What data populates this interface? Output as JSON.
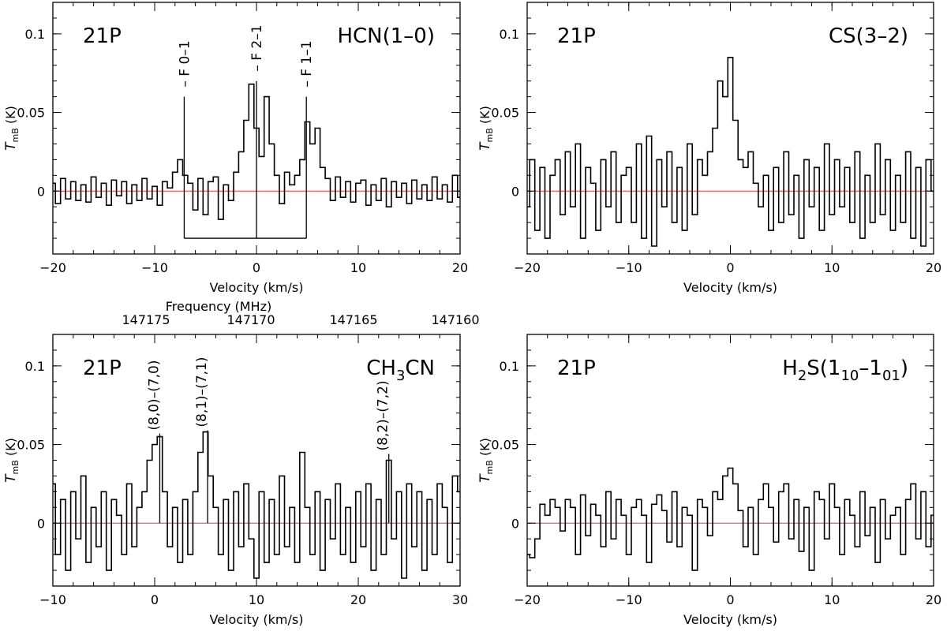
{
  "figure": {
    "colors": {
      "spectrum": "#000000",
      "baseline": "#e8382f"
    }
  },
  "chart_data": [
    {
      "id": "hcn",
      "type": "line",
      "step": true,
      "panel_label": "21P",
      "molecule": {
        "text": "HCN(1–0)"
      },
      "xlabel": "Velocity (km/s)",
      "ylabel": {
        "main": "T",
        "sub": "mB",
        "unit": " (K)"
      },
      "xlim": [
        -20,
        20
      ],
      "ylim": [
        -0.04,
        0.12
      ],
      "xticks": [
        -20,
        -10,
        0,
        10,
        20
      ],
      "xtick_labels": [
        "−20",
        "−10",
        "0",
        "10",
        "20"
      ],
      "yticks": [
        0,
        0.05,
        0.1
      ],
      "ytick_labels": [
        "0",
        "0.05",
        "0.1"
      ],
      "x_minor_step": 2,
      "y_minor_step": 0.01,
      "baseline": 0,
      "hyperfine": {
        "bar_y": -0.03,
        "components": [
          {
            "x": -7.1,
            "label": "F 0–1",
            "top": 0.06
          },
          {
            "x": 0.0,
            "label": "F 2–1",
            "top": 0.07
          },
          {
            "x": 4.9,
            "label": "F 1–1",
            "top": 0.06
          }
        ]
      },
      "x": [
        -20.0,
        -19.5,
        -19.0,
        -18.5,
        -18.0,
        -17.5,
        -17.0,
        -16.5,
        -16.0,
        -15.5,
        -15.0,
        -14.5,
        -14.0,
        -13.5,
        -13.0,
        -12.5,
        -12.0,
        -11.5,
        -11.0,
        -10.5,
        -10.0,
        -9.5,
        -9.0,
        -8.5,
        -8.0,
        -7.5,
        -7.0,
        -6.5,
        -6.0,
        -5.5,
        -5.0,
        -4.5,
        -4.0,
        -3.5,
        -3.0,
        -2.5,
        -2.0,
        -1.5,
        -1.0,
        -0.5,
        0.0,
        0.5,
        1.0,
        1.5,
        2.0,
        2.5,
        3.0,
        3.5,
        4.0,
        4.5,
        5.0,
        5.5,
        6.0,
        6.5,
        7.0,
        7.5,
        8.0,
        8.5,
        9.0,
        9.5,
        10.0,
        10.5,
        11.0,
        11.5,
        12.0,
        12.5,
        13.0,
        13.5,
        14.0,
        14.5,
        15.0,
        15.5,
        16.0,
        16.5,
        17.0,
        17.5,
        18.0,
        18.5,
        19.0,
        19.5,
        20.0
      ],
      "y": [
        0.005,
        -0.008,
        0.008,
        -0.005,
        0.006,
        -0.006,
        0.004,
        -0.007,
        0.009,
        -0.004,
        0.005,
        -0.009,
        0.007,
        -0.003,
        0.006,
        -0.008,
        0.004,
        -0.006,
        0.008,
        -0.005,
        0.003,
        -0.009,
        0.006,
        0.002,
        0.012,
        0.02,
        0.01,
        0.005,
        -0.012,
        0.008,
        -0.015,
        0.006,
        0.009,
        -0.018,
        0.004,
        -0.006,
        0.012,
        0.025,
        0.045,
        0.068,
        0.04,
        0.022,
        0.06,
        0.03,
        0.01,
        -0.008,
        0.012,
        0.004,
        0.01,
        0.02,
        0.044,
        0.03,
        0.04,
        0.015,
        0.008,
        -0.006,
        0.009,
        -0.004,
        0.006,
        -0.007,
        0.005,
        0.007,
        -0.009,
        0.004,
        -0.006,
        0.008,
        -0.01,
        0.006,
        -0.004,
        0.005,
        -0.008,
        0.007,
        -0.005,
        0.004,
        -0.006,
        0.009,
        -0.005,
        0.004,
        -0.007,
        0.01,
        -0.004
      ]
    },
    {
      "id": "cs",
      "type": "line",
      "step": true,
      "panel_label": "21P",
      "molecule": {
        "text": "CS(3–2)"
      },
      "xlabel": "Velocity (km/s)",
      "ylabel": {
        "main": "T",
        "sub": "mB",
        "unit": " (K)"
      },
      "xlim": [
        -20,
        20
      ],
      "ylim": [
        -0.04,
        0.12
      ],
      "xticks": [
        -20,
        -10,
        0,
        10,
        20
      ],
      "xtick_labels": [
        "−20",
        "−10",
        "0",
        "10",
        "20"
      ],
      "yticks": [
        0,
        0.05,
        0.1
      ],
      "ytick_labels": [
        "0",
        "0.05",
        "0.1"
      ],
      "x_minor_step": 2,
      "y_minor_step": 0.01,
      "baseline": 0,
      "x": [
        -20.0,
        -19.5,
        -19.0,
        -18.5,
        -18.0,
        -17.5,
        -17.0,
        -16.5,
        -16.0,
        -15.5,
        -15.0,
        -14.5,
        -14.0,
        -13.5,
        -13.0,
        -12.5,
        -12.0,
        -11.5,
        -11.0,
        -10.5,
        -10.0,
        -9.5,
        -9.0,
        -8.5,
        -8.0,
        -7.5,
        -7.0,
        -6.5,
        -6.0,
        -5.5,
        -5.0,
        -4.5,
        -4.0,
        -3.5,
        -3.0,
        -2.5,
        -2.0,
        -1.5,
        -1.0,
        -0.5,
        0.0,
        0.5,
        1.0,
        1.5,
        2.0,
        2.5,
        3.0,
        3.5,
        4.0,
        4.5,
        5.0,
        5.5,
        6.0,
        6.5,
        7.0,
        7.5,
        8.0,
        8.5,
        9.0,
        9.5,
        10.0,
        10.5,
        11.0,
        11.5,
        12.0,
        12.5,
        13.0,
        13.5,
        14.0,
        14.5,
        15.0,
        15.5,
        16.0,
        16.5,
        17.0,
        17.5,
        18.0,
        18.5,
        19.0,
        19.5,
        20.0
      ],
      "y": [
        -0.01,
        0.02,
        -0.025,
        0.015,
        -0.03,
        0.01,
        0.02,
        -0.015,
        0.025,
        -0.01,
        0.03,
        -0.03,
        0.015,
        0.005,
        -0.025,
        0.02,
        -0.01,
        0.025,
        -0.02,
        0.01,
        0.015,
        -0.02,
        0.03,
        -0.03,
        0.035,
        -0.035,
        0.02,
        -0.01,
        0.025,
        -0.02,
        0.015,
        -0.025,
        0.03,
        -0.015,
        0.02,
        0.01,
        0.025,
        0.04,
        0.07,
        0.06,
        0.085,
        0.045,
        0.02,
        0.015,
        0.025,
        0.005,
        -0.01,
        0.01,
        -0.025,
        0.015,
        -0.02,
        0.025,
        -0.015,
        0.01,
        -0.03,
        0.02,
        -0.01,
        0.015,
        -0.025,
        0.03,
        -0.015,
        0.02,
        -0.01,
        0.015,
        -0.02,
        0.025,
        -0.03,
        0.01,
        -0.02,
        0.03,
        -0.015,
        0.02,
        -0.025,
        0.01,
        -0.02,
        0.025,
        -0.03,
        0.015,
        -0.035,
        0.02,
        0.0
      ]
    },
    {
      "id": "ch3cn",
      "type": "line",
      "step": true,
      "panel_label": "21P",
      "molecule": {
        "text": "CH",
        "sub": "3",
        "tail": "CN"
      },
      "xlabel": "Velocity (km/s)",
      "secondary_xlabel": "Frequency (MHz)",
      "secondary_ticks": [
        147175,
        147170,
        147165,
        147160
      ],
      "secondary_tick_labels": [
        "147175",
        "147170",
        "147165",
        "147160"
      ],
      "ylabel": {
        "main": "T",
        "sub": "mB",
        "unit": " (K)"
      },
      "xlim": [
        -10,
        30
      ],
      "ylim": [
        -0.04,
        0.12
      ],
      "xticks": [
        -10,
        0,
        10,
        20,
        30
      ],
      "xtick_labels": [
        "−10",
        "0",
        "10",
        "20",
        "30"
      ],
      "yticks": [
        0,
        0.05,
        0.1
      ],
      "ytick_labels": [
        "0",
        "0.05",
        "0.1"
      ],
      "x_minor_step": 2,
      "y_minor_step": 0.01,
      "baseline": 0,
      "line_markers": [
        {
          "x": 0.5,
          "label": "(8,0)–(7,0)",
          "top": 0.057
        },
        {
          "x": 5.2,
          "label": "(8,1)–(7,1)",
          "top": 0.059
        },
        {
          "x": 23.0,
          "label": "(8,2)–(7,2)",
          "top": 0.044
        }
      ],
      "x": [
        -10.0,
        -9.5,
        -9.0,
        -8.5,
        -8.0,
        -7.5,
        -7.0,
        -6.5,
        -6.0,
        -5.5,
        -5.0,
        -4.5,
        -4.0,
        -3.5,
        -3.0,
        -2.5,
        -2.0,
        -1.5,
        -1.0,
        -0.5,
        0.0,
        0.5,
        1.0,
        1.5,
        2.0,
        2.5,
        3.0,
        3.5,
        4.0,
        4.5,
        5.0,
        5.5,
        6.0,
        6.5,
        7.0,
        7.5,
        8.0,
        8.5,
        9.0,
        9.5,
        10.0,
        10.5,
        11.0,
        11.5,
        12.0,
        12.5,
        13.0,
        13.5,
        14.0,
        14.5,
        15.0,
        15.5,
        16.0,
        16.5,
        17.0,
        17.5,
        18.0,
        18.5,
        19.0,
        19.5,
        20.0,
        20.5,
        21.0,
        21.5,
        22.0,
        22.5,
        23.0,
        23.5,
        24.0,
        24.5,
        25.0,
        25.5,
        26.0,
        26.5,
        27.0,
        27.5,
        28.0,
        28.5,
        29.0,
        29.5,
        30.0
      ],
      "y": [
        0.025,
        -0.02,
        0.015,
        -0.03,
        0.02,
        -0.01,
        0.03,
        -0.025,
        0.01,
        -0.015,
        0.02,
        -0.03,
        0.015,
        0.005,
        -0.02,
        0.025,
        -0.015,
        0.01,
        0.02,
        0.04,
        0.05,
        0.055,
        0.02,
        -0.015,
        0.01,
        -0.025,
        0.015,
        -0.02,
        0.02,
        0.045,
        0.058,
        0.03,
        0.01,
        -0.02,
        0.015,
        -0.03,
        0.02,
        -0.015,
        0.025,
        -0.01,
        -0.035,
        0.02,
        -0.025,
        0.015,
        -0.02,
        0.03,
        -0.015,
        0.01,
        -0.025,
        0.045,
        0.01,
        -0.02,
        0.02,
        -0.03,
        0.015,
        -0.01,
        0.025,
        -0.02,
        0.01,
        -0.025,
        0.02,
        -0.015,
        0.025,
        -0.03,
        0.015,
        -0.02,
        0.04,
        -0.01,
        0.02,
        -0.035,
        0.025,
        -0.015,
        0.02,
        -0.03,
        0.015,
        -0.02,
        0.025,
        0.01,
        -0.025,
        0.03,
        0.02
      ]
    },
    {
      "id": "h2s",
      "type": "line",
      "step": true,
      "panel_label": "21P",
      "molecule": {
        "text": "H",
        "sub": "2",
        "mid": "S(1",
        "sub2": "10",
        "mid2": "–1",
        "sub3": "01",
        "tail": ")"
      },
      "xlabel": "Velocity (km/s)",
      "ylabel": {
        "main": "T",
        "sub": "mB",
        "unit": " (K)"
      },
      "xlim": [
        -20,
        20
      ],
      "ylim": [
        -0.04,
        0.12
      ],
      "xticks": [
        -20,
        -10,
        0,
        10,
        20
      ],
      "xtick_labels": [
        "−20",
        "−10",
        "0",
        "10",
        "20"
      ],
      "yticks": [
        0,
        0.05,
        0.1
      ],
      "ytick_labels": [
        "0",
        "0.05",
        "0.1"
      ],
      "x_minor_step": 2,
      "y_minor_step": 0.01,
      "baseline": 0,
      "x": [
        -20.0,
        -19.5,
        -19.0,
        -18.5,
        -18.0,
        -17.5,
        -17.0,
        -16.5,
        -16.0,
        -15.5,
        -15.0,
        -14.5,
        -14.0,
        -13.5,
        -13.0,
        -12.5,
        -12.0,
        -11.5,
        -11.0,
        -10.5,
        -10.0,
        -9.5,
        -9.0,
        -8.5,
        -8.0,
        -7.5,
        -7.0,
        -6.5,
        -6.0,
        -5.5,
        -5.0,
        -4.5,
        -4.0,
        -3.5,
        -3.0,
        -2.5,
        -2.0,
        -1.5,
        -1.0,
        -0.5,
        0.0,
        0.5,
        1.0,
        1.5,
        2.0,
        2.5,
        3.0,
        3.5,
        4.0,
        4.5,
        5.0,
        5.5,
        6.0,
        6.5,
        7.0,
        7.5,
        8.0,
        8.5,
        9.0,
        9.5,
        10.0,
        10.5,
        11.0,
        11.5,
        12.0,
        12.5,
        13.0,
        13.5,
        14.0,
        14.5,
        15.0,
        15.5,
        16.0,
        16.5,
        17.0,
        17.5,
        18.0,
        18.5,
        19.0,
        19.5,
        20.0
      ],
      "y": [
        -0.02,
        -0.022,
        -0.01,
        0.012,
        0.005,
        0.015,
        0.01,
        -0.005,
        0.015,
        0.01,
        -0.02,
        0.018,
        -0.008,
        0.012,
        0.005,
        -0.015,
        0.02,
        -0.01,
        0.015,
        0.005,
        -0.02,
        0.01,
        0.015,
        0.005,
        -0.025,
        0.012,
        0.018,
        0.008,
        -0.012,
        0.02,
        -0.015,
        0.01,
        0.005,
        -0.03,
        0.015,
        0.01,
        -0.008,
        0.02,
        0.015,
        0.03,
        0.035,
        0.025,
        0.008,
        -0.015,
        0.01,
        -0.02,
        0.015,
        0.025,
        0.01,
        -0.012,
        0.02,
        0.025,
        -0.01,
        0.015,
        -0.018,
        0.01,
        -0.03,
        0.02,
        0.015,
        -0.01,
        0.025,
        0.01,
        -0.02,
        0.015,
        0.005,
        -0.015,
        0.02,
        -0.008,
        0.01,
        -0.025,
        0.015,
        -0.01,
        0.005,
        0.01,
        -0.02,
        0.015,
        0.025,
        -0.01,
        0.02,
        -0.015,
        0.005
      ]
    }
  ]
}
